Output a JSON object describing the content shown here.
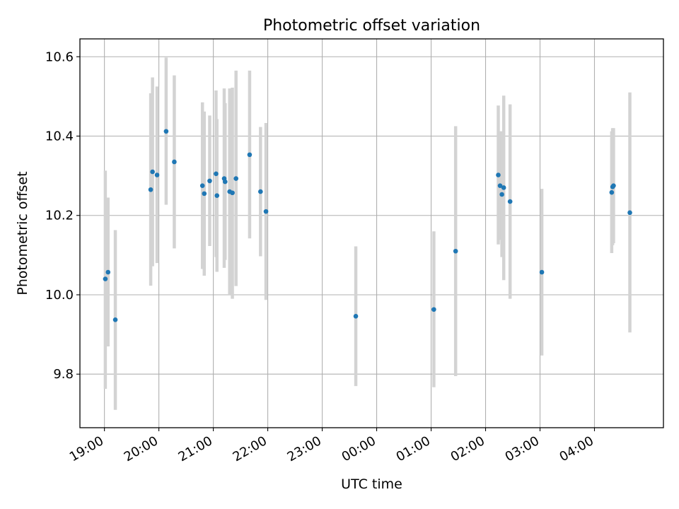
{
  "chart_data": {
    "type": "scatter",
    "title": "Photometric offset variation",
    "xlabel": "UTC time",
    "ylabel": "Photometric offset",
    "grid": true,
    "legend": "none",
    "x_unit": "UTC time (HH:MM), night spanning midnight",
    "xlim": [
      "18:33",
      "05:16"
    ],
    "ylim": [
      9.665,
      10.645
    ],
    "x_ticks": [
      "19:00",
      "20:00",
      "21:00",
      "22:00",
      "23:00",
      "00:00",
      "01:00",
      "02:00",
      "03:00",
      "04:00"
    ],
    "y_ticks": [
      "9.8",
      "10.0",
      "10.2",
      "10.4",
      "10.6"
    ],
    "marker_color": "#1f77b4",
    "errorbar_color": "#d3d3d3",
    "points": [
      {
        "x": "19:01",
        "y": 10.04,
        "ylow": 9.763,
        "yhigh": 10.313
      },
      {
        "x": "19:04",
        "y": 10.057,
        "ylow": 9.87,
        "yhigh": 10.245
      },
      {
        "x": "19:12",
        "y": 9.937,
        "ylow": 9.71,
        "yhigh": 10.163
      },
      {
        "x": "19:51",
        "y": 10.265,
        "ylow": 10.023,
        "yhigh": 10.508
      },
      {
        "x": "19:53",
        "y": 10.31,
        "ylow": 10.072,
        "yhigh": 10.548
      },
      {
        "x": "19:58",
        "y": 10.302,
        "ylow": 10.08,
        "yhigh": 10.525
      },
      {
        "x": "20:08",
        "y": 10.412,
        "ylow": 10.227,
        "yhigh": 10.598
      },
      {
        "x": "20:17",
        "y": 10.335,
        "ylow": 10.117,
        "yhigh": 10.553
      },
      {
        "x": "20:48",
        "y": 10.275,
        "ylow": 10.065,
        "yhigh": 10.485
      },
      {
        "x": "20:50",
        "y": 10.255,
        "ylow": 10.048,
        "yhigh": 10.462
      },
      {
        "x": "20:56",
        "y": 10.287,
        "ylow": 10.123,
        "yhigh": 10.452
      },
      {
        "x": "21:03",
        "y": 10.305,
        "ylow": 10.095,
        "yhigh": 10.515
      },
      {
        "x": "21:04",
        "y": 10.25,
        "ylow": 10.058,
        "yhigh": 10.443
      },
      {
        "x": "21:12",
        "y": 10.293,
        "ylow": 10.068,
        "yhigh": 10.52
      },
      {
        "x": "21:13",
        "y": 10.285,
        "ylow": 10.088,
        "yhigh": 10.483
      },
      {
        "x": "21:18",
        "y": 10.26,
        "ylow": 10.0,
        "yhigh": 10.52
      },
      {
        "x": "21:21",
        "y": 10.257,
        "ylow": 9.99,
        "yhigh": 10.522
      },
      {
        "x": "21:25",
        "y": 10.293,
        "ylow": 10.022,
        "yhigh": 10.565
      },
      {
        "x": "21:40",
        "y": 10.353,
        "ylow": 10.142,
        "yhigh": 10.565
      },
      {
        "x": "21:52",
        "y": 10.26,
        "ylow": 10.097,
        "yhigh": 10.423
      },
      {
        "x": "21:58",
        "y": 10.21,
        "ylow": 9.987,
        "yhigh": 10.433
      },
      {
        "x": "23:37",
        "y": 9.946,
        "ylow": 9.77,
        "yhigh": 10.122
      },
      {
        "x": "01:03",
        "y": 9.963,
        "ylow": 9.767,
        "yhigh": 10.16
      },
      {
        "x": "01:27",
        "y": 10.11,
        "ylow": 9.795,
        "yhigh": 10.425
      },
      {
        "x": "02:14",
        "y": 10.302,
        "ylow": 10.127,
        "yhigh": 10.477
      },
      {
        "x": "02:16",
        "y": 10.275,
        "ylow": 10.138,
        "yhigh": 10.412
      },
      {
        "x": "02:18",
        "y": 10.253,
        "ylow": 10.095,
        "yhigh": 10.412
      },
      {
        "x": "02:20",
        "y": 10.27,
        "ylow": 10.037,
        "yhigh": 10.502
      },
      {
        "x": "02:27",
        "y": 10.235,
        "ylow": 9.99,
        "yhigh": 10.48
      },
      {
        "x": "03:02",
        "y": 10.057,
        "ylow": 9.847,
        "yhigh": 10.267
      },
      {
        "x": "04:19",
        "y": 10.258,
        "ylow": 10.105,
        "yhigh": 10.412
      },
      {
        "x": "04:20",
        "y": 10.272,
        "ylow": 10.125,
        "yhigh": 10.42
      },
      {
        "x": "04:21",
        "y": 10.275,
        "ylow": 10.13,
        "yhigh": 10.42
      },
      {
        "x": "04:39",
        "y": 10.207,
        "ylow": 9.905,
        "yhigh": 10.51
      }
    ]
  }
}
